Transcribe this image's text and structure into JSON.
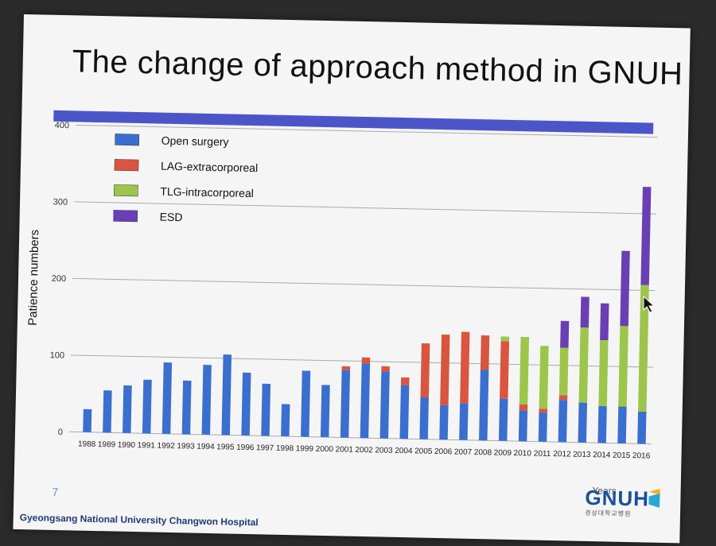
{
  "slide": {
    "title": "The change of approach method in GNUH",
    "slide_number": "7",
    "footer": "Gyeongsang National University Changwon Hospital",
    "logo_text": "GNUH",
    "logo_subtext": "경상대학교병원",
    "accent_bar_color": "#4c55c8"
  },
  "chart_data": {
    "type": "bar",
    "stacked": true,
    "ylabel": "Patience numbers",
    "xlabel": "Years",
    "ylim": [
      0,
      400
    ],
    "yticks": [
      0,
      100,
      200,
      300,
      400
    ],
    "grid": true,
    "legend_position": "top-left",
    "categories": [
      "1988",
      "1989",
      "1990",
      "1991",
      "1992",
      "1993",
      "1994",
      "1995",
      "1996",
      "1997",
      "1998",
      "1999",
      "2000",
      "2001",
      "2002",
      "2003",
      "2004",
      "2005",
      "2006",
      "2007",
      "2008",
      "2009",
      "2010",
      "2011",
      "2012",
      "2013",
      "2014",
      "2015",
      "2016"
    ],
    "series": [
      {
        "name": "Open surgery",
        "color": "#3a6fcf",
        "values": [
          30,
          55,
          62,
          70,
          93,
          70,
          91,
          105,
          82,
          68,
          42,
          86,
          68,
          88,
          97,
          87,
          70,
          55,
          45,
          48,
          92,
          55,
          40,
          38,
          55,
          52,
          48,
          48,
          42
        ]
      },
      {
        "name": "LAG-extracorporeal",
        "color": "#d9553f",
        "values": [
          0,
          0,
          0,
          0,
          0,
          0,
          0,
          0,
          0,
          0,
          0,
          0,
          0,
          5,
          8,
          7,
          10,
          70,
          92,
          93,
          45,
          75,
          8,
          5,
          6,
          0,
          0,
          0,
          0
        ]
      },
      {
        "name": "TLG-intracorporeal",
        "color": "#9dc54b",
        "values": [
          0,
          0,
          0,
          0,
          0,
          0,
          0,
          0,
          0,
          0,
          0,
          0,
          0,
          0,
          0,
          0,
          0,
          0,
          0,
          0,
          0,
          6,
          88,
          82,
          62,
          98,
          86,
          105,
          165
        ]
      },
      {
        "name": "ESD",
        "color": "#6a3fb4",
        "values": [
          0,
          0,
          0,
          0,
          0,
          0,
          0,
          0,
          0,
          0,
          0,
          0,
          0,
          0,
          0,
          0,
          0,
          0,
          0,
          0,
          0,
          0,
          0,
          0,
          35,
          40,
          48,
          98,
          128
        ]
      }
    ]
  }
}
